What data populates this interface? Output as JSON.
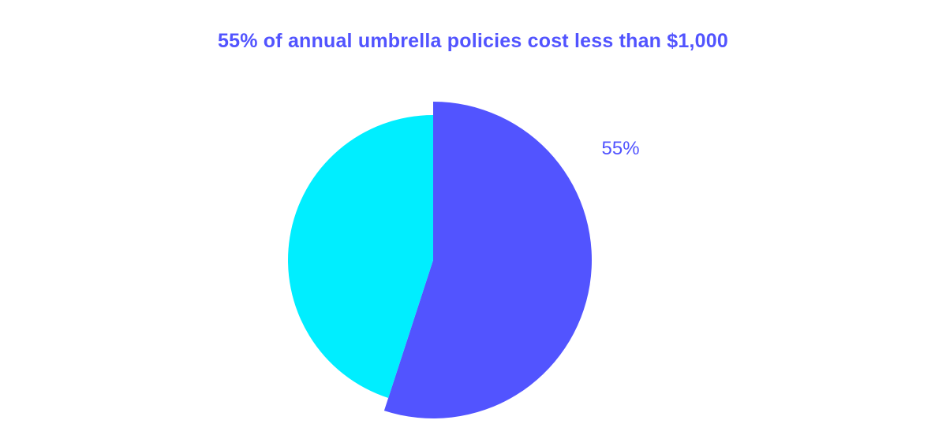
{
  "chart_data": {
    "type": "pie",
    "title": "55% of annual umbrella policies cost less than $1,000",
    "slices": [
      {
        "value": 55,
        "label": "55%",
        "color": "#5254ff"
      },
      {
        "value": 45,
        "label": "",
        "color": "#00eeff"
      }
    ],
    "title_color": "#5254ff"
  }
}
